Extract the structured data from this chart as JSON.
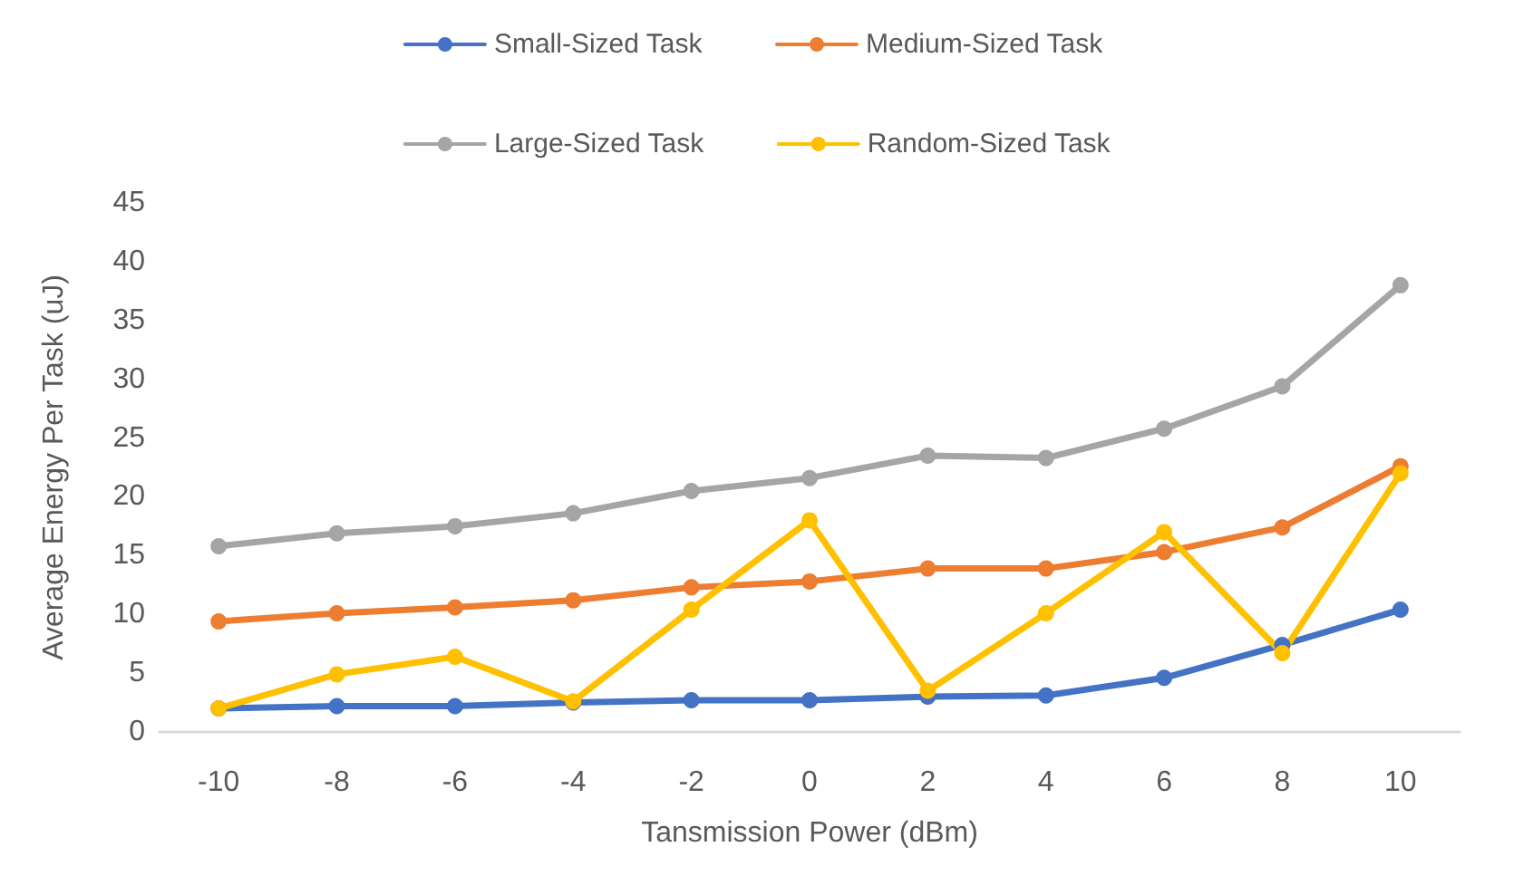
{
  "chart_data": {
    "type": "line",
    "xlabel": "Tansmission Power (dBm)",
    "ylabel": "Average Energy Per Task (uJ)",
    "categories": [
      "-10",
      "-8",
      "-6",
      "-4",
      "-2",
      "0",
      "2",
      "4",
      "6",
      "8",
      "10"
    ],
    "ylim": [
      0,
      45
    ],
    "yticks": [
      0,
      5,
      10,
      15,
      20,
      25,
      30,
      35,
      40,
      45
    ],
    "grid": false,
    "legend": "top",
    "marker": "circle",
    "series": [
      {
        "name": "Small-Sized Task",
        "color": "#4472c4",
        "values": [
          2.0,
          2.2,
          2.2,
          2.5,
          2.7,
          2.7,
          3.0,
          3.1,
          4.6,
          7.4,
          10.4
        ]
      },
      {
        "name": "Medium-Sized Task",
        "color": "#ed7d31",
        "values": [
          9.4,
          10.1,
          10.6,
          11.2,
          12.3,
          12.8,
          13.9,
          13.9,
          15.3,
          17.4,
          22.6
        ]
      },
      {
        "name": "Large-Sized Task",
        "color": "#a5a5a5",
        "values": [
          15.8,
          16.9,
          17.5,
          18.6,
          20.5,
          21.6,
          23.5,
          23.3,
          25.8,
          29.4,
          38.0
        ]
      },
      {
        "name": "Random-Sized Task",
        "color": "#ffc000",
        "values": [
          2.0,
          4.9,
          6.4,
          2.6,
          10.4,
          18.0,
          3.5,
          10.1,
          17.0,
          6.7,
          22.0
        ]
      }
    ]
  }
}
